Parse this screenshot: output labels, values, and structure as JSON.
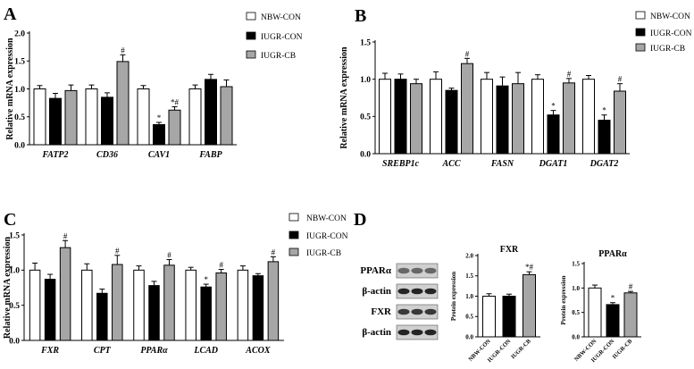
{
  "legend": [
    "NBW-CON",
    "IUGR-CON",
    "IUGR-CB"
  ],
  "colors": {
    "nbw": "#ffffff",
    "iugr": "#000000",
    "cb": "#a6a6a6"
  },
  "blot": {
    "labels": [
      "PPARα",
      "β-actin",
      "FXR",
      "β-actin"
    ]
  },
  "chart_data": [
    {
      "panel": "A",
      "type": "bar",
      "ylabel": "Relative mRNA expression",
      "ylim": [
        0,
        2.0
      ],
      "yticks": [
        "0.0",
        "0.5",
        "1.0",
        "1.5",
        "2.0"
      ],
      "categories": [
        "FATP2",
        "CD36",
        "CAV1",
        "FABP"
      ],
      "series": [
        {
          "name": "NBW-CON",
          "values": [
            1.0,
            1.0,
            1.0,
            1.0
          ],
          "errors": [
            0.06,
            0.07,
            0.06,
            0.07
          ]
        },
        {
          "name": "IUGR-CON",
          "values": [
            0.83,
            0.85,
            0.36,
            1.17
          ],
          "errors": [
            0.09,
            0.08,
            0.04,
            0.09
          ]
        },
        {
          "name": "IUGR-CB",
          "values": [
            0.97,
            1.49,
            0.62,
            1.04
          ],
          "errors": [
            0.1,
            0.12,
            0.06,
            0.12
          ]
        }
      ],
      "marks": [
        [
          "",
          "",
          ""
        ],
        [
          "",
          "",
          "#"
        ],
        [
          "",
          "*",
          "*#"
        ],
        [
          "",
          "",
          ""
        ]
      ]
    },
    {
      "panel": "B",
      "type": "bar",
      "ylabel": "Relative mRNA expression",
      "ylim": [
        0,
        1.5
      ],
      "yticks": [
        "0.0",
        "0.5",
        "1.0",
        "1.5"
      ],
      "categories": [
        "SREBP1c",
        "ACC",
        "FASN",
        "DGAT1",
        "DGAT2"
      ],
      "series": [
        {
          "name": "NBW-CON",
          "values": [
            1.0,
            1.0,
            1.0,
            1.0,
            1.0
          ],
          "errors": [
            0.08,
            0.1,
            0.09,
            0.06,
            0.05
          ]
        },
        {
          "name": "IUGR-CON",
          "values": [
            1.0,
            0.85,
            0.91,
            0.52,
            0.45
          ],
          "errors": [
            0.07,
            0.03,
            0.12,
            0.06,
            0.07
          ]
        },
        {
          "name": "IUGR-CB",
          "values": [
            0.94,
            1.21,
            0.94,
            0.95,
            0.84
          ],
          "errors": [
            0.06,
            0.07,
            0.15,
            0.06,
            0.1
          ]
        }
      ],
      "marks": [
        [
          "",
          "",
          ""
        ],
        [
          "",
          "",
          "#"
        ],
        [
          "",
          "",
          ""
        ],
        [
          "",
          "*",
          "#"
        ],
        [
          "",
          "*",
          "#"
        ]
      ]
    },
    {
      "panel": "C",
      "type": "bar",
      "ylabel": "Relative mRNA expression",
      "ylim": [
        0,
        1.5
      ],
      "yticks": [
        "0.0",
        "0.5",
        "1.0",
        "1.5"
      ],
      "categories": [
        "FXR",
        "CPT",
        "PPARα",
        "LCAD",
        "ACOX"
      ],
      "series": [
        {
          "name": "NBW-CON",
          "values": [
            1.0,
            1.0,
            1.0,
            1.0,
            1.0
          ],
          "errors": [
            0.1,
            0.09,
            0.06,
            0.04,
            0.06
          ]
        },
        {
          "name": "IUGR-CON",
          "values": [
            0.87,
            0.67,
            0.78,
            0.76,
            0.92
          ],
          "errors": [
            0.07,
            0.06,
            0.06,
            0.04,
            0.03
          ]
        },
        {
          "name": "IUGR-CB",
          "values": [
            1.32,
            1.08,
            1.07,
            0.96,
            1.12
          ],
          "errors": [
            0.1,
            0.13,
            0.08,
            0.05,
            0.07
          ]
        }
      ],
      "marks": [
        [
          "",
          "",
          "#"
        ],
        [
          "",
          "",
          "#"
        ],
        [
          "",
          "",
          "#"
        ],
        [
          "",
          "*",
          "#"
        ],
        [
          "",
          "",
          "#"
        ]
      ]
    },
    {
      "panel": "D",
      "type": "bar",
      "title": "FXR",
      "ylabel": "Protein expression",
      "ylim": [
        0,
        2.0
      ],
      "yticks": [
        "0.0",
        "0.5",
        "1.0",
        "1.5",
        "2.0"
      ],
      "categories": [
        "NBW-CON",
        "IUGR-CON",
        "IUGR-CB"
      ],
      "values": [
        1.0,
        1.0,
        1.53
      ],
      "errors": [
        0.06,
        0.05,
        0.07
      ],
      "marks": [
        "",
        "",
        "*#"
      ]
    },
    {
      "panel": "",
      "type": "bar",
      "title": "PPARα",
      "ylabel": "Protein expression",
      "ylim": [
        0,
        1.5
      ],
      "yticks": [
        "0.0",
        "0.5",
        "1.0",
        "1.5"
      ],
      "categories": [
        "NBW-CON",
        "IUGR-CON",
        "IUGR-CB"
      ],
      "values": [
        1.0,
        0.66,
        0.9
      ],
      "errors": [
        0.06,
        0.04,
        0.03
      ],
      "marks": [
        "",
        "*",
        "#"
      ]
    }
  ]
}
